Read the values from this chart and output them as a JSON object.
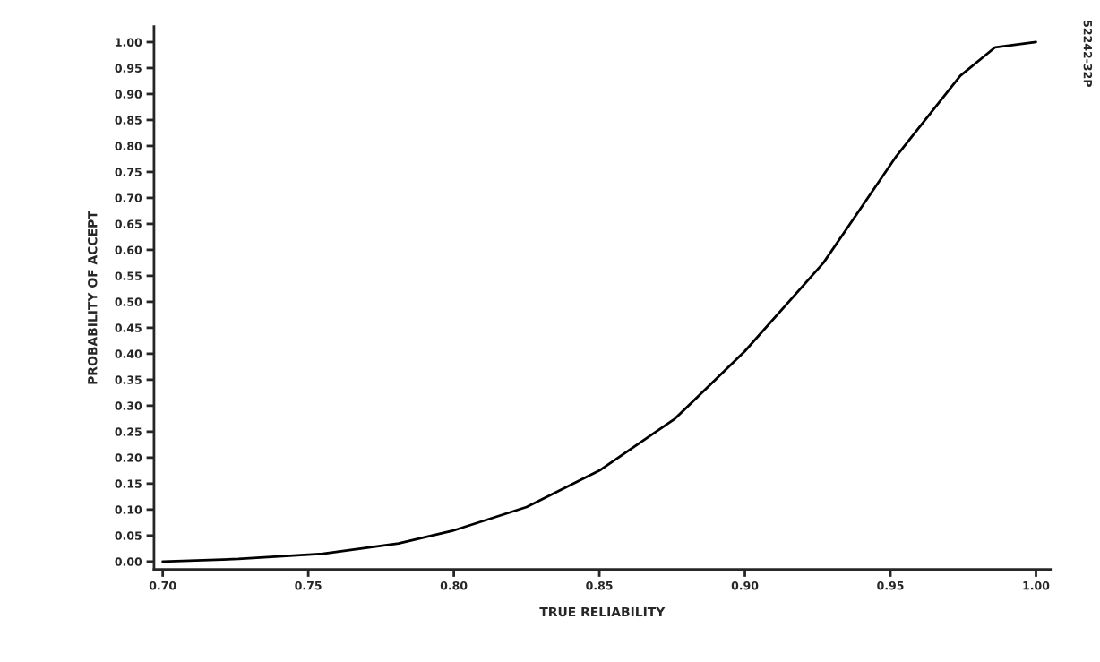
{
  "chart_data": {
    "type": "line",
    "xlabel": "TRUE RELIABILITY",
    "ylabel": "PROBABILITY OF ACCEPT",
    "annotations": [
      "52242-32P"
    ],
    "x": [
      0.7,
      0.726,
      0.755,
      0.781,
      0.8,
      0.825,
      0.85,
      0.876,
      0.9,
      0.927,
      0.952,
      0.974,
      0.986,
      1.0
    ],
    "series": [
      {
        "color": "#000000",
        "values": [
          0.0,
          0.005,
          0.015,
          0.035,
          0.06,
          0.105,
          0.175,
          0.275,
          0.405,
          0.575,
          0.78,
          0.935,
          0.99,
          1.0
        ]
      }
    ],
    "xlim": [
      0.697,
      1.005
    ],
    "ylim": [
      -0.015,
      1.03
    ],
    "xticks": [
      {
        "value": 0.7,
        "label": "0.70"
      },
      {
        "value": 0.75,
        "label": "0.75"
      },
      {
        "value": 0.8,
        "label": "0.80"
      },
      {
        "value": 0.85,
        "label": "0.85"
      },
      {
        "value": 0.9,
        "label": "0.90"
      },
      {
        "value": 0.95,
        "label": "0.95"
      },
      {
        "value": 1.0,
        "label": "1.00"
      }
    ],
    "yticks": [
      {
        "value": 0.0,
        "label": "0.00"
      },
      {
        "value": 0.05,
        "label": "0.05"
      },
      {
        "value": 0.1,
        "label": "0.10"
      },
      {
        "value": 0.15,
        "label": "0.15"
      },
      {
        "value": 0.2,
        "label": "0.20"
      },
      {
        "value": 0.25,
        "label": "0.25"
      },
      {
        "value": 0.3,
        "label": "0.30"
      },
      {
        "value": 0.35,
        "label": "0.35"
      },
      {
        "value": 0.4,
        "label": "0.40"
      },
      {
        "value": 0.45,
        "label": "0.45"
      },
      {
        "value": 0.5,
        "label": "0.50"
      },
      {
        "value": 0.55,
        "label": "0.55"
      },
      {
        "value": 0.6,
        "label": "0.60"
      },
      {
        "value": 0.65,
        "label": "0.65"
      },
      {
        "value": 0.7,
        "label": "0.70"
      },
      {
        "value": 0.75,
        "label": "0.75"
      },
      {
        "value": 0.8,
        "label": "0.80"
      },
      {
        "value": 0.85,
        "label": "0.85"
      },
      {
        "value": 0.9,
        "label": "0.90"
      },
      {
        "value": 0.95,
        "label": "0.95"
      },
      {
        "value": 1.0,
        "label": "1.00"
      }
    ],
    "grid": false,
    "legend": false,
    "marker": "none",
    "line_style": "solid"
  }
}
